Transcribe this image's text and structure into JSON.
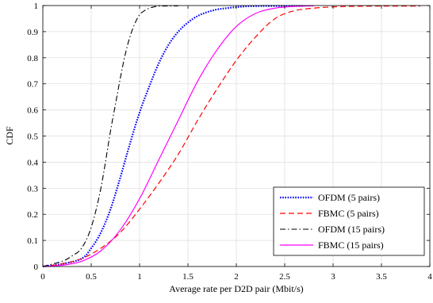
{
  "chart_data": {
    "type": "line",
    "title": "",
    "xlabel": "Average rate per D2D pair (Mbit/s)",
    "ylabel": "CDF",
    "xlim": [
      0,
      4
    ],
    "ylim": [
      0,
      1
    ],
    "x_ticks": [
      0,
      0.5,
      1,
      1.5,
      2,
      2.5,
      3,
      3.5,
      4
    ],
    "x_tick_labels": [
      "0",
      "0.5",
      "1",
      "1.5",
      "2",
      "2.5",
      "3",
      "3.5",
      "4"
    ],
    "y_ticks": [
      0,
      0.1,
      0.2,
      0.3,
      0.4,
      0.5,
      0.6,
      0.7,
      0.8,
      0.9,
      1
    ],
    "y_tick_labels": [
      "0",
      "0.1",
      "0.2",
      "0.3",
      "0.4",
      "0.5",
      "0.6",
      "0.7",
      "0.8",
      "0.9",
      "1"
    ],
    "grid": true,
    "legend_position": "bottom-right",
    "series": [
      {
        "name": "OFDM (5 pairs)",
        "color": "#0000ff",
        "dash": "dotted",
        "x": [
          0,
          0.2,
          0.4,
          0.5,
          0.6,
          0.7,
          0.8,
          0.9,
          1.0,
          1.1,
          1.2,
          1.3,
          1.4,
          1.5,
          1.6,
          1.7,
          1.8,
          1.9,
          2.0,
          2.1,
          2.2,
          2.3,
          2.5,
          2.7
        ],
        "y": [
          0,
          0.01,
          0.03,
          0.07,
          0.13,
          0.22,
          0.34,
          0.47,
          0.59,
          0.69,
          0.78,
          0.85,
          0.9,
          0.935,
          0.96,
          0.975,
          0.985,
          0.99,
          0.994,
          0.997,
          0.998,
          0.999,
          1.0,
          1.0
        ]
      },
      {
        "name": "FBMC (5 pairs)",
        "color": "#ff0000",
        "dash": "dashed",
        "x": [
          0,
          0.2,
          0.4,
          0.6,
          0.8,
          1.0,
          1.2,
          1.4,
          1.6,
          1.8,
          2.0,
          2.2,
          2.4,
          2.6,
          2.8,
          3.0,
          3.2,
          3.5,
          3.9
        ],
        "y": [
          0,
          0.01,
          0.03,
          0.07,
          0.13,
          0.22,
          0.32,
          0.43,
          0.56,
          0.68,
          0.79,
          0.88,
          0.95,
          0.98,
          0.99,
          0.995,
          0.997,
          0.998,
          0.998
        ]
      },
      {
        "name": "OFDM (15 pairs)",
        "color": "#000000",
        "dash": "dashdot",
        "x": [
          0,
          0.2,
          0.3,
          0.4,
          0.5,
          0.6,
          0.7,
          0.75,
          0.8,
          0.85,
          0.9,
          0.95,
          1.0,
          1.05,
          1.1,
          1.15,
          1.2,
          1.3,
          1.4
        ],
        "y": [
          0,
          0.02,
          0.04,
          0.07,
          0.15,
          0.3,
          0.52,
          0.62,
          0.72,
          0.81,
          0.88,
          0.93,
          0.965,
          0.98,
          0.99,
          0.995,
          0.998,
          1.0,
          1.0
        ]
      },
      {
        "name": "FBMC (15 pairs)",
        "color": "#ff00ff",
        "dash": "solid",
        "x": [
          0,
          0.2,
          0.4,
          0.6,
          0.8,
          1.0,
          1.2,
          1.4,
          1.6,
          1.8,
          2.0,
          2.2,
          2.4,
          2.6,
          2.8
        ],
        "y": [
          0,
          0.005,
          0.02,
          0.06,
          0.14,
          0.26,
          0.41,
          0.56,
          0.71,
          0.83,
          0.92,
          0.97,
          0.99,
          0.997,
          1.0
        ]
      }
    ]
  }
}
